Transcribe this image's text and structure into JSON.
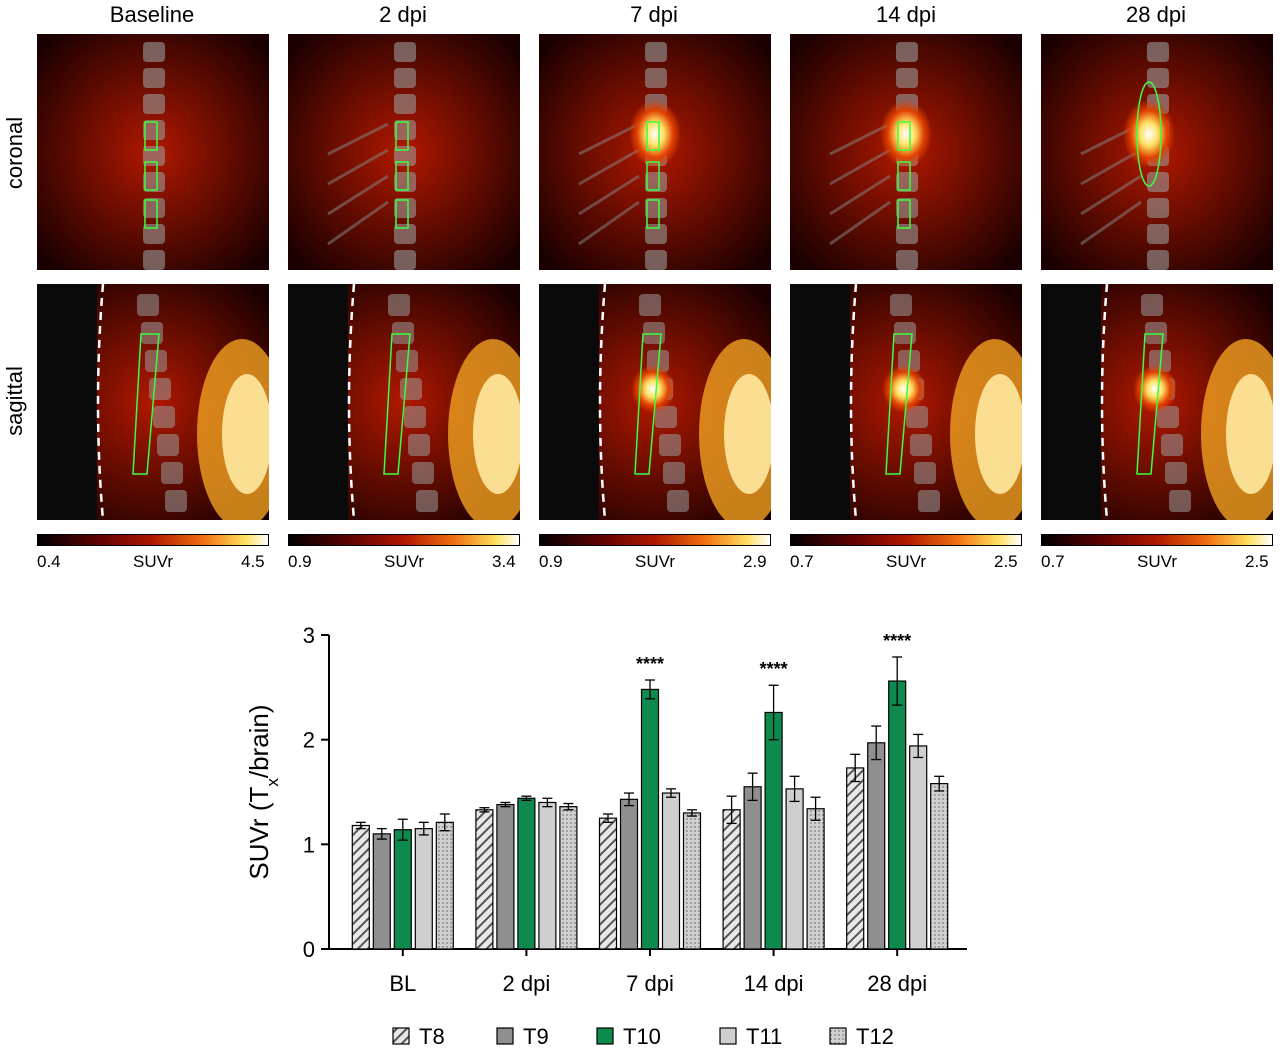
{
  "columns": [
    "Baseline",
    "2 dpi",
    "7 dpi",
    "14 dpi",
    "28 dpi"
  ],
  "rows": [
    "coronal",
    "sagittal"
  ],
  "colorbars": [
    {
      "min": "0.4",
      "label": "SUVr",
      "max": "4.5"
    },
    {
      "min": "0.9",
      "label": "SUVr",
      "max": "3.4"
    },
    {
      "min": "0.9",
      "label": "SUVr",
      "max": "2.9"
    },
    {
      "min": "0.7",
      "label": "SUVr",
      "max": "2.5"
    },
    {
      "min": "0.7",
      "label": "SUVr",
      "max": "2.5"
    }
  ],
  "colors": {
    "roi_outline": "#3cff3c",
    "hot_low": "#1a0000",
    "hot_mid": "#b01800",
    "hot_high": "#ffe060",
    "T8": "#555555",
    "T9": "#8f8f8f",
    "T10": "#0e8a4e",
    "T11": "#cfcfcf",
    "T12": "#d0d0d0"
  },
  "chart_data": {
    "type": "bar",
    "ylabel_main": "SUVr (T",
    "ylabel_sub": "x",
    "ylabel_tail": "/brain)",
    "ylim": [
      0,
      3
    ],
    "yticks": [
      "0",
      "1",
      "2",
      "3"
    ],
    "categories": [
      "BL",
      "2 dpi",
      "7 dpi",
      "14 dpi",
      "28 dpi"
    ],
    "significance": [
      "",
      "",
      "****",
      "****",
      "****"
    ],
    "series": [
      {
        "name": "T8",
        "values": [
          1.18,
          1.33,
          1.25,
          1.33,
          1.73
        ],
        "errors": [
          0.03,
          0.02,
          0.04,
          0.13,
          0.13
        ],
        "pattern": "hatch"
      },
      {
        "name": "T9",
        "values": [
          1.1,
          1.38,
          1.43,
          1.55,
          1.97
        ],
        "errors": [
          0.05,
          0.02,
          0.06,
          0.13,
          0.16
        ],
        "pattern": "solid"
      },
      {
        "name": "T10",
        "values": [
          1.14,
          1.44,
          2.48,
          2.26,
          2.56
        ],
        "errors": [
          0.1,
          0.02,
          0.09,
          0.26,
          0.23
        ],
        "pattern": "solid"
      },
      {
        "name": "T11",
        "values": [
          1.15,
          1.4,
          1.49,
          1.53,
          1.94
        ],
        "errors": [
          0.06,
          0.04,
          0.04,
          0.12,
          0.11
        ],
        "pattern": "solid"
      },
      {
        "name": "T12",
        "values": [
          1.21,
          1.36,
          1.3,
          1.34,
          1.58
        ],
        "errors": [
          0.08,
          0.03,
          0.03,
          0.11,
          0.07
        ],
        "pattern": "dots"
      }
    ],
    "legend": [
      "T8",
      "T9",
      "T10",
      "T11",
      "T12"
    ],
    "legend_position": "bottom"
  }
}
